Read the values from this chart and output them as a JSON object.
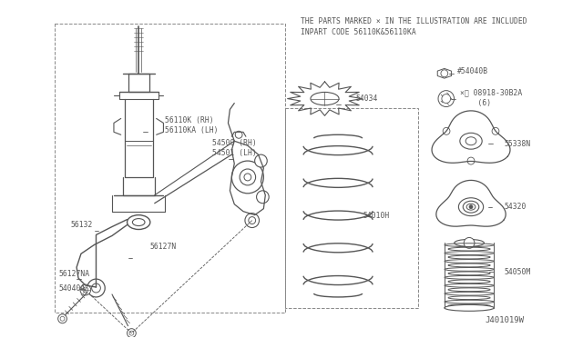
{
  "bg_color": "#ffffff",
  "line_color": "#555555",
  "title_line1": "THE PARTS MARKED × IN THE ILLUSTRATION ARE INCLUDED",
  "title_line2": "INPART CODE 56110K&56110KA",
  "footer_text": "J401019W",
  "font_size": 5.8,
  "title_fontsize": 5.8,
  "footer_fontsize": 6.5,
  "fig_w": 6.4,
  "fig_h": 3.72,
  "dpi": 100
}
